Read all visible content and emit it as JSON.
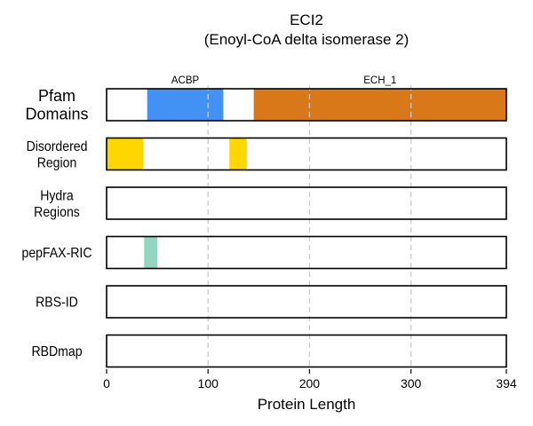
{
  "chart_data": {
    "type": "bar",
    "title": "ECI2",
    "subtitle": "(Enoyl-CoA delta isomerase 2)",
    "xlabel": "Protein Length",
    "xlim": [
      0,
      394
    ],
    "xticks": [
      0,
      100,
      200,
      300,
      394
    ],
    "grid_x": [
      100,
      200,
      300
    ],
    "tracks": [
      {
        "label_lines": [
          "Pfam",
          "Domains"
        ],
        "segments": [
          {
            "start": 40,
            "end": 115,
            "color": "#4192f4",
            "label": "ACBP"
          },
          {
            "start": 145,
            "end": 394,
            "color": "#d97818",
            "label": "ECH_1"
          }
        ]
      },
      {
        "label_lines": [
          "Disordered",
          "Region"
        ],
        "segments": [
          {
            "start": 0,
            "end": 36,
            "color": "#ffd700"
          },
          {
            "start": 121,
            "end": 138,
            "color": "#ffd700"
          }
        ]
      },
      {
        "label_lines": [
          "Hydra",
          "Regions"
        ],
        "segments": []
      },
      {
        "label_lines": [
          "pepFAX-RIC"
        ],
        "segments": [
          {
            "start": 37,
            "end": 50,
            "color": "#93d6c0"
          }
        ]
      },
      {
        "label_lines": [
          "RBS-ID"
        ],
        "segments": []
      },
      {
        "label_lines": [
          "RBDmap"
        ],
        "segments": []
      }
    ]
  }
}
